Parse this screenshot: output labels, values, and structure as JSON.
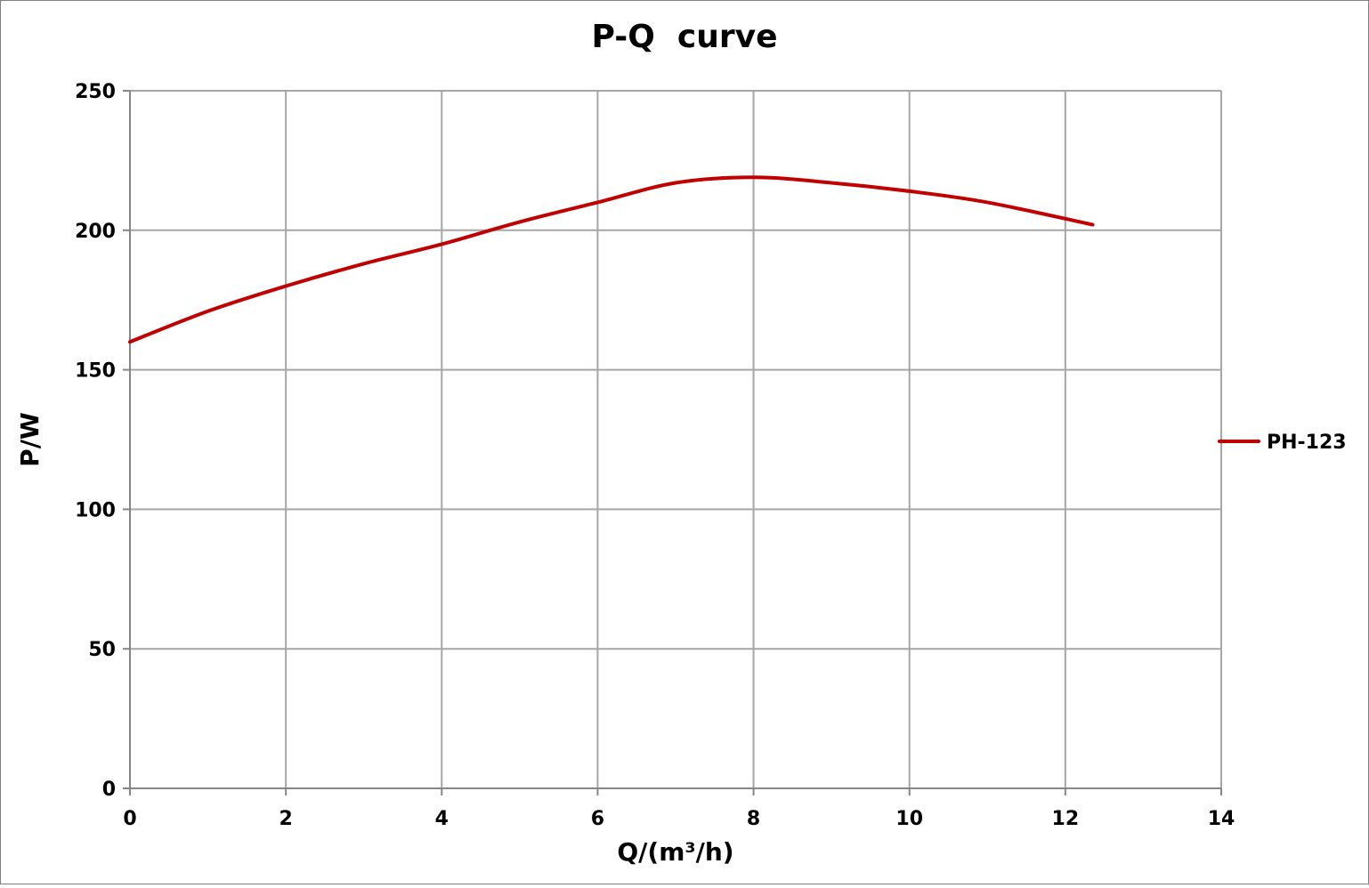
{
  "chart_data": {
    "type": "line",
    "title": "P-Q  curve",
    "xlabel": "Q/(m³/h)",
    "ylabel": "P/W",
    "xlim": [
      0,
      14
    ],
    "ylim": [
      0,
      250
    ],
    "x_ticks": [
      0,
      2,
      4,
      6,
      8,
      10,
      12,
      14
    ],
    "y_ticks": [
      0,
      50,
      100,
      150,
      200,
      250
    ],
    "grid": true,
    "legend_position": "right",
    "series": [
      {
        "name": "PH-123",
        "color": "#c00000",
        "points": [
          {
            "x": 0,
            "y": 160
          },
          {
            "x": 1,
            "y": 171
          },
          {
            "x": 2,
            "y": 180
          },
          {
            "x": 3,
            "y": 188
          },
          {
            "x": 4,
            "y": 195
          },
          {
            "x": 5,
            "y": 203
          },
          {
            "x": 6,
            "y": 210
          },
          {
            "x": 7,
            "y": 217
          },
          {
            "x": 8,
            "y": 219
          },
          {
            "x": 9,
            "y": 217
          },
          {
            "x": 10,
            "y": 214
          },
          {
            "x": 11,
            "y": 210
          },
          {
            "x": 12.35,
            "y": 202
          }
        ]
      }
    ]
  },
  "colors": {
    "grid": "#a6a6a6",
    "axis": "#868686",
    "frame": "#7f7f7f"
  }
}
